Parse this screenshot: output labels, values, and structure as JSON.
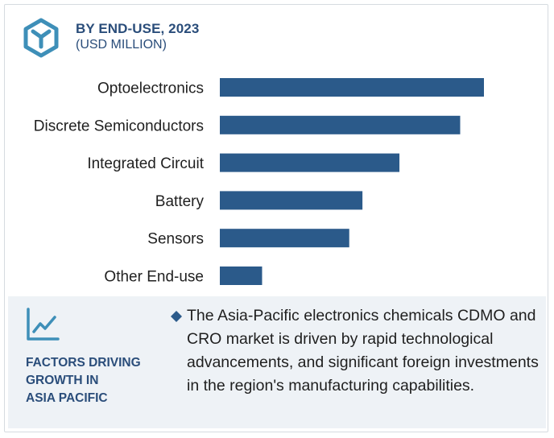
{
  "header": {
    "title": "BY END-USE, 2023",
    "subtitle": "(USD MILLION)"
  },
  "colors": {
    "bar": "#2b5a8a",
    "accent": "#3e8fb8",
    "heading": "#2a4d7a",
    "panel_bg": "#eef2f6"
  },
  "icons": {
    "logo": "hexagon-logo-icon",
    "trend": "line-chart-icon",
    "bullet": "diamond-bullet-icon"
  },
  "chart_data": {
    "type": "bar",
    "orientation": "horizontal",
    "title": "BY END-USE, 2023",
    "subtitle": "(USD MILLION)",
    "xlabel": "",
    "ylabel": "",
    "grid": false,
    "legend": "none",
    "xlim": [
      0,
      100
    ],
    "categories": [
      "Optoelectronics",
      "Discrete Semiconductors",
      "Integrated Circuit",
      "Battery",
      "Sensors",
      "Other End-use"
    ],
    "values": [
      100,
      91,
      68,
      54,
      49,
      16
    ]
  },
  "factors": {
    "title_lines": [
      "FACTORS DRIVING",
      "GROWTH IN",
      "ASIA PACIFIC"
    ],
    "text": "The Asia-Pacific electronics chemicals CDMO and CRO market is driven by rapid technological advancements, and significant foreign investments in the region's manufacturing capabilities."
  }
}
